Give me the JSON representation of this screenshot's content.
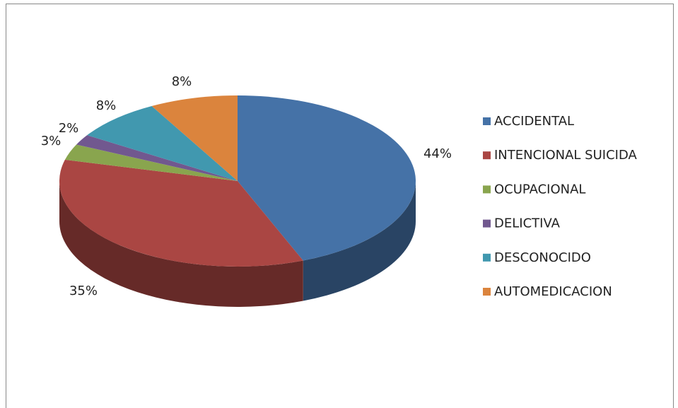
{
  "chart_data": {
    "type": "pie3d",
    "categories": [
      "ACCIDENTAL",
      "INTENCIONAL SUICIDA",
      "OCUPACIONAL",
      "DELICTIVA",
      "DESCONOCIDO",
      "AUTOMEDICACION"
    ],
    "values": [
      44,
      35,
      3,
      2,
      8,
      8
    ],
    "value_labels": [
      "44%",
      "35%",
      "3%",
      "2%",
      "8%",
      "8%"
    ],
    "colors": [
      "#4572a7",
      "#aa4643",
      "#89a54e",
      "#71588f",
      "#4198af",
      "#db843d"
    ],
    "legend": "right"
  }
}
